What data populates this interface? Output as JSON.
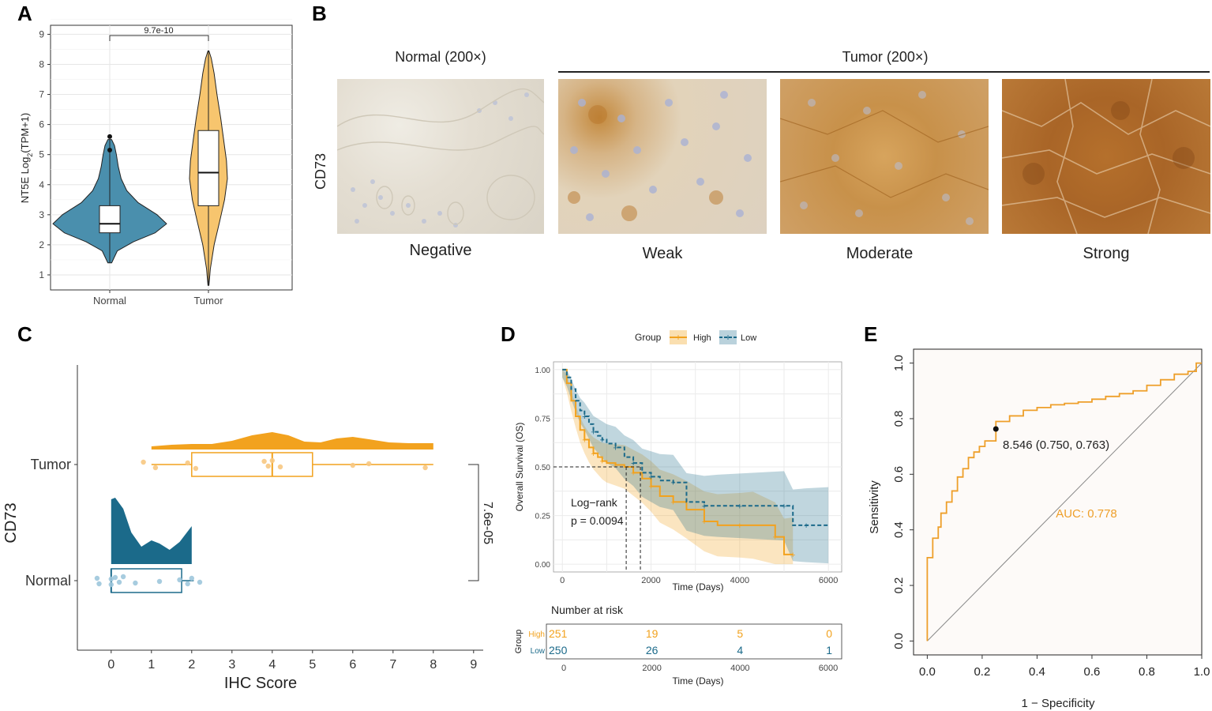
{
  "panels": {
    "a": "A",
    "b": "B",
    "c": "C",
    "d": "D",
    "e": "E"
  },
  "colors": {
    "tumor": "#F2A21E",
    "normal": "#1B6A8A",
    "roc": "#EE9F2A",
    "high": "#F2A21E",
    "low": "#1B6A8A"
  },
  "panel_b": {
    "normal_header": "Normal (200×)",
    "tumor_header": "Tumor (200×)",
    "row_label": "CD73",
    "images": [
      {
        "label": "Negative"
      },
      {
        "label": "Weak"
      },
      {
        "label": "Moderate"
      },
      {
        "label": "Strong"
      }
    ]
  },
  "chart_data": [
    {
      "id": "A",
      "type": "violin",
      "title": "",
      "xlabel": "",
      "ylabel": "NT5E  Log2(TPM+1)",
      "ylim": [
        0.5,
        9.3
      ],
      "yticks": [
        1,
        2,
        3,
        4,
        5,
        6,
        7,
        8,
        9
      ],
      "categories": [
        "Normal",
        "Tumor"
      ],
      "pvalue_label": "9.7e-10",
      "groups": [
        {
          "name": "Normal",
          "min": 1.4,
          "q1": 2.4,
          "median": 2.7,
          "q3": 3.3,
          "max": 5.5,
          "outliers": [
            5.15,
            5.6
          ]
        },
        {
          "name": "Tumor",
          "min": 0.65,
          "q1": 3.3,
          "median": 4.4,
          "q3": 5.8,
          "max": 8.45,
          "outliers": []
        }
      ]
    },
    {
      "id": "C",
      "type": "raincloud",
      "xlabel": "IHC Score",
      "ylabel": "CD73",
      "xlim": [
        -0.8,
        9.2
      ],
      "xticks": [
        0,
        1,
        2,
        3,
        4,
        5,
        6,
        7,
        8,
        9
      ],
      "categories": [
        "Normal",
        "Tumor"
      ],
      "pvalue_label": "7.6e-05",
      "groups": [
        {
          "name": "Tumor",
          "min": 1,
          "q1": 2,
          "median": 4,
          "q3": 5,
          "max": 8,
          "points": [
            0.8,
            1.1,
            1.9,
            2.1,
            3.8,
            3.9,
            4,
            4.2,
            6,
            6.4,
            7.8
          ]
        },
        {
          "name": "Normal",
          "min": 0,
          "q1": 0,
          "median": 0,
          "q3": 1.75,
          "max": 2.05,
          "points": [
            -0.35,
            -0.3,
            0,
            0,
            0.1,
            0.2,
            0.3,
            0.6,
            1.2,
            1.7,
            1.9,
            2.0,
            2.2
          ]
        }
      ]
    },
    {
      "id": "D",
      "type": "line",
      "xlabel": "Time (Days)",
      "ylabel": "Overall Survival (OS)",
      "xlim": [
        -200,
        6300
      ],
      "ylim": [
        -0.04,
        1.04
      ],
      "xticks": [
        0,
        2000,
        4000,
        6000
      ],
      "yticks": [
        "0.00",
        "0.25",
        "0.50",
        "0.75",
        "1.00"
      ],
      "legend_title": "Group",
      "annotation": [
        "Log−rank",
        "p = 0.0094"
      ],
      "median_survival": [
        {
          "group": "High",
          "x": 1440
        },
        {
          "group": "Low",
          "x": 1760
        }
      ],
      "series": [
        {
          "name": "High",
          "x": [
            0,
            100,
            200,
            300,
            400,
            500,
            600,
            700,
            800,
            900,
            1000,
            1200,
            1400,
            1600,
            1800,
            2000,
            2200,
            2500,
            2800,
            3200,
            3500,
            4000,
            4300,
            4800,
            5000,
            5200
          ],
          "y": [
            1.0,
            0.93,
            0.84,
            0.76,
            0.69,
            0.64,
            0.6,
            0.57,
            0.55,
            0.53,
            0.52,
            0.51,
            0.5,
            0.47,
            0.44,
            0.4,
            0.35,
            0.32,
            0.28,
            0.22,
            0.2,
            0.2,
            0.2,
            0.14,
            0.05,
            0.05
          ]
        },
        {
          "name": "Low",
          "x": [
            0,
            100,
            200,
            300,
            400,
            500,
            600,
            700,
            800,
            900,
            1000,
            1200,
            1400,
            1600,
            1800,
            2000,
            2200,
            2500,
            2800,
            3200,
            3500,
            4000,
            4500,
            5000,
            5200,
            5500,
            6000
          ],
          "y": [
            1.0,
            0.96,
            0.9,
            0.84,
            0.79,
            0.76,
            0.72,
            0.68,
            0.66,
            0.64,
            0.62,
            0.6,
            0.55,
            0.52,
            0.47,
            0.45,
            0.43,
            0.42,
            0.32,
            0.3,
            0.3,
            0.3,
            0.3,
            0.3,
            0.2,
            0.2,
            0.2
          ]
        }
      ],
      "risk_table": {
        "title": "Number at risk",
        "xlabel": "Time (Days)",
        "ylabel": "Group",
        "times": [
          0,
          2000,
          4000,
          6000
        ],
        "rows": [
          {
            "name": "High",
            "counts": [
              "251",
              "19",
              "5",
              "0"
            ]
          },
          {
            "name": "Low",
            "counts": [
              "250",
              "26",
              "4",
              "1"
            ]
          }
        ]
      }
    },
    {
      "id": "E",
      "type": "line",
      "xlabel": "1 − Specificity",
      "ylabel": "Sensitivity",
      "xlim": [
        -0.05,
        1.0
      ],
      "ylim": [
        -0.05,
        1.05
      ],
      "xticks": [
        "0.0",
        "0.2",
        "0.4",
        "0.6",
        "0.8",
        "1.0"
      ],
      "yticks": [
        "0.0",
        "0.2",
        "0.4",
        "0.6",
        "0.8",
        "1.0"
      ],
      "auc_label": "AUC: 0.778",
      "cutoff_label": "8.546 (0.750, 0.763)",
      "cutoff_point": {
        "x": 0.25,
        "y": 0.763
      },
      "roc": {
        "x": [
          0,
          0,
          0.02,
          0.04,
          0.05,
          0.07,
          0.09,
          0.11,
          0.13,
          0.15,
          0.17,
          0.19,
          0.21,
          0.23,
          0.25,
          0.25,
          0.3,
          0.35,
          0.4,
          0.45,
          0.5,
          0.55,
          0.6,
          0.65,
          0.7,
          0.75,
          0.8,
          0.85,
          0.9,
          0.95,
          0.98,
          1.0
        ],
        "y": [
          0,
          0.29,
          0.3,
          0.37,
          0.41,
          0.46,
          0.5,
          0.54,
          0.59,
          0.62,
          0.66,
          0.68,
          0.7,
          0.72,
          0.72,
          0.763,
          0.79,
          0.81,
          0.83,
          0.84,
          0.85,
          0.855,
          0.86,
          0.87,
          0.88,
          0.89,
          0.9,
          0.92,
          0.94,
          0.96,
          0.97,
          1.0
        ]
      }
    }
  ]
}
